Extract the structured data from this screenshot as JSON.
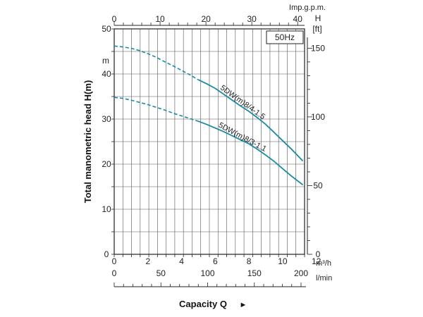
{
  "chart_data": {
    "type": "line",
    "title": "",
    "frequency_label": "50Hz",
    "ylabel": "Total manometric head H(m)",
    "xlabel": "Capacity Q",
    "xlabel_arrow": "►",
    "units": {
      "left": "m",
      "right_h": "H",
      "right_ft": "[ft]",
      "top": "Imp.g.p.m.",
      "bottom_m3h": "m³/h",
      "bottom_lmin": "l/min"
    },
    "axes": {
      "x_m3h": {
        "range": [
          0,
          11.3
        ],
        "ticks": [
          "0",
          "2",
          "4",
          "6",
          "8",
          "10",
          "12"
        ],
        "tick_values": [
          0,
          2,
          4,
          6,
          8,
          10,
          12
        ]
      },
      "y_m": {
        "range": [
          0,
          50
        ],
        "ticks": [
          "0",
          "10",
          "20",
          "30",
          "40",
          "50"
        ],
        "tick_values": [
          0,
          10,
          20,
          30,
          40,
          50
        ]
      },
      "top_impgpm": {
        "ticks": [
          "0",
          "10",
          "20",
          "30",
          "40"
        ],
        "tick_values": [
          0,
          10,
          20,
          30,
          40
        ]
      },
      "bottom_lmin": {
        "ticks": [
          "0",
          "50",
          "100",
          "150",
          "200"
        ],
        "tick_values": [
          0,
          50,
          100,
          150,
          200
        ]
      },
      "right_ft": {
        "ticks": [
          "0",
          "50",
          "100",
          "150"
        ],
        "tick_values": [
          0,
          50,
          100,
          150
        ]
      }
    },
    "grid": true,
    "series": [
      {
        "name": "5DW(m)8/4-1.5",
        "color": "#1a8ba6",
        "dashed_segment": {
          "x": [
            0,
            0.5,
            1,
            1.5,
            2,
            2.5,
            3,
            3.5,
            4,
            4.5,
            5
          ],
          "y": [
            46.2,
            46.0,
            45.7,
            45.2,
            44.5,
            43.7,
            42.7,
            41.8,
            40.8,
            39.8,
            38.7
          ]
        },
        "solid_segment": {
          "x": [
            5,
            5.5,
            6,
            6.5,
            7,
            7.5,
            8,
            8.5,
            9,
            9.5,
            10,
            10.5,
            11.2
          ],
          "y": [
            38.7,
            37.8,
            36.8,
            35.5,
            34.2,
            32.9,
            31.7,
            30.3,
            28.8,
            27.0,
            25.2,
            23.4,
            20.7
          ]
        }
      },
      {
        "name": "5DW(m)8/3-1.1",
        "color": "#1a8ba6",
        "dashed_segment": {
          "x": [
            0,
            0.5,
            1,
            1.5,
            2,
            2.5,
            3,
            3.5,
            4,
            4.5,
            5
          ],
          "y": [
            34.8,
            34.6,
            34.2,
            33.7,
            33.2,
            32.6,
            32.0,
            31.3,
            30.7,
            30.1,
            29.5
          ]
        },
        "solid_segment": {
          "x": [
            5,
            5.5,
            6,
            6.5,
            7,
            7.5,
            8,
            8.5,
            9,
            9.5,
            10,
            10.5,
            11.2
          ],
          "y": [
            29.5,
            28.8,
            28.0,
            27.2,
            26.3,
            25.4,
            24.5,
            23.3,
            22.0,
            20.6,
            19.0,
            17.4,
            15.4
          ]
        }
      }
    ]
  }
}
